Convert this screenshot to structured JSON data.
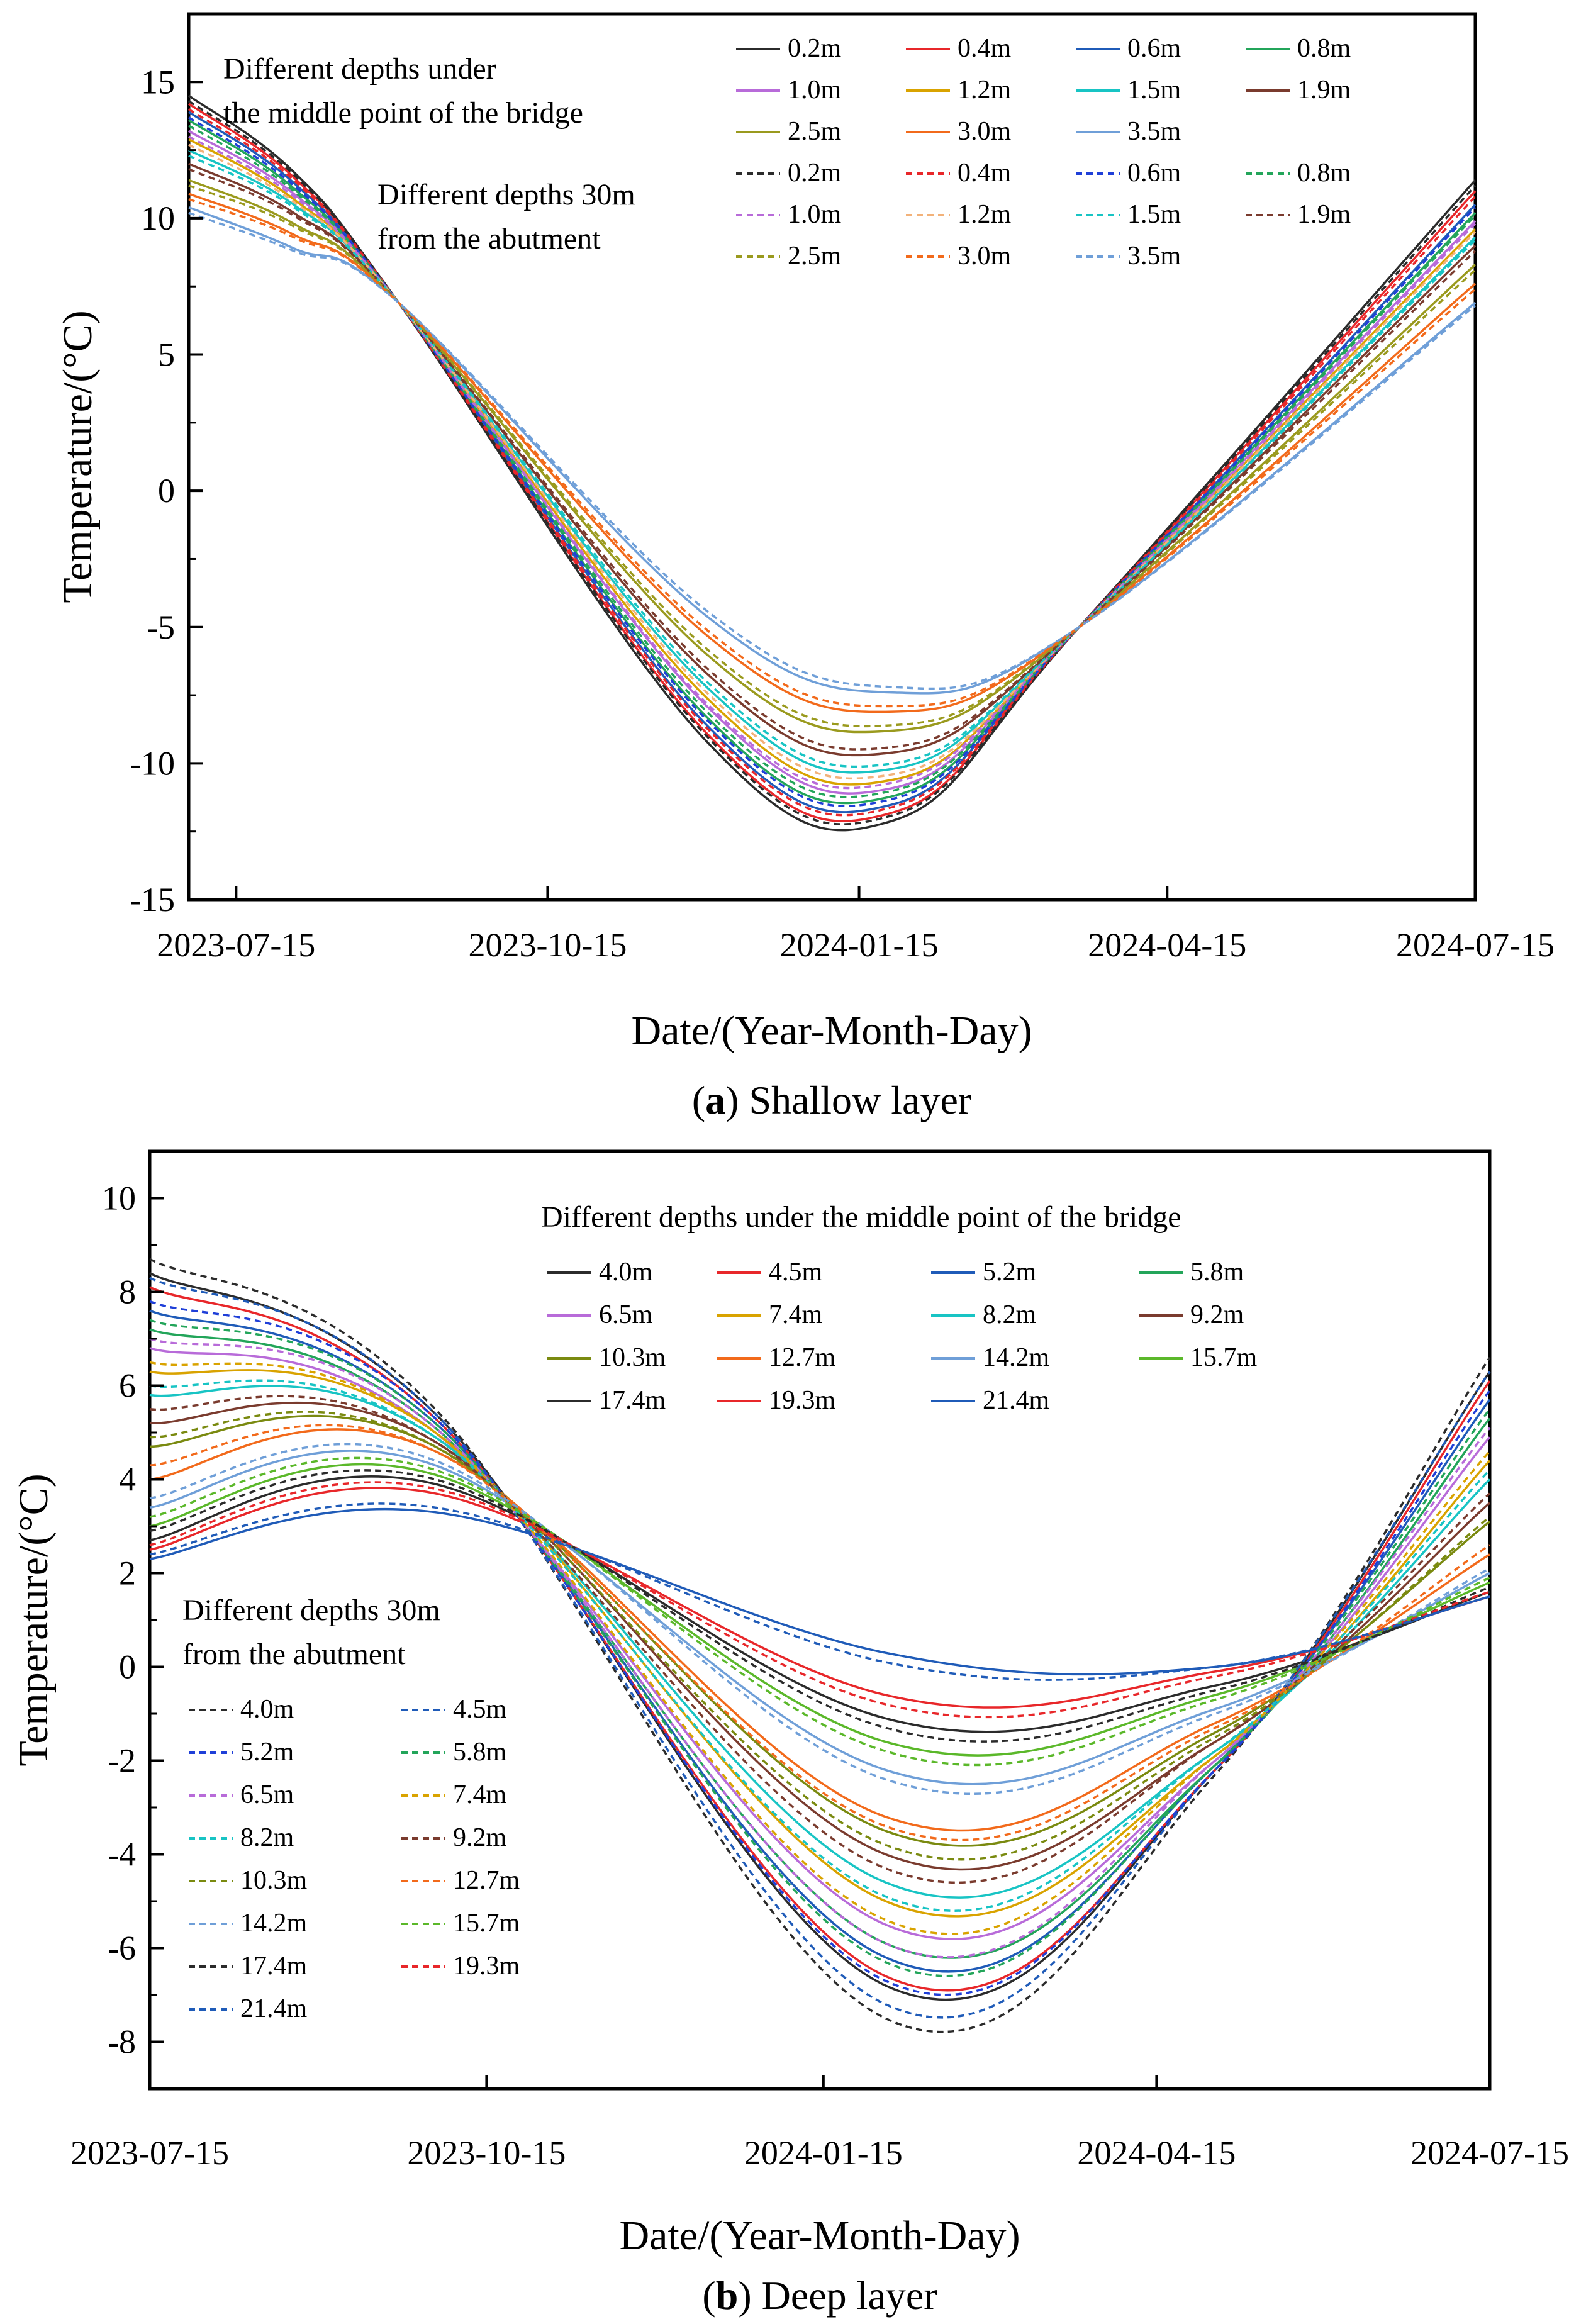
{
  "chart_data": [
    {
      "panel": "a",
      "type": "line",
      "caption_letter": "a",
      "caption_text": "Shallow layer",
      "xlabel": "Date/(Year-Month-Day)",
      "ylabel": "Temperature/(°C)",
      "xlim": [
        "2023-07-01",
        "2024-07-15"
      ],
      "ylim": [
        -15,
        17.5
      ],
      "x_ticks": [
        "2023-07-15",
        "2023-10-15",
        "2024-01-15",
        "2024-04-15",
        "2024-07-15"
      ],
      "y_ticks": [
        -15,
        -10,
        -5,
        0,
        5,
        10,
        15
      ],
      "annotations": [
        {
          "text": "Different depths under",
          "line": 1,
          "group": "solid"
        },
        {
          "text": "the middle point of  the bridge",
          "line": 2,
          "group": "solid"
        },
        {
          "text": "Different depths  30m",
          "line": 1,
          "group": "dashed"
        },
        {
          "text": "from the  abutment",
          "line": 2,
          "group": "dashed"
        }
      ],
      "legend_placement": "top-right",
      "legend_columns": 4,
      "series": [
        {
          "name": "0.2m",
          "group": "middle",
          "style": "solid",
          "color": "#2b2b2b",
          "y": [
            14.5,
            11.7,
            6.9,
            -9.2,
            -12.1,
            -5.0,
            11.4
          ]
        },
        {
          "name": "0.4m",
          "group": "middle",
          "style": "solid",
          "color": "#e8272a",
          "y": [
            14.2,
            11.5,
            6.9,
            -8.9,
            -11.8,
            -5.0,
            11.0
          ]
        },
        {
          "name": "0.6m",
          "group": "middle",
          "style": "solid",
          "color": "#1f5bb8",
          "y": [
            13.9,
            11.3,
            6.9,
            -8.6,
            -11.5,
            -5.0,
            10.5
          ]
        },
        {
          "name": "0.8m",
          "group": "middle",
          "style": "solid",
          "color": "#23a55a",
          "y": [
            13.6,
            11.1,
            6.9,
            -8.3,
            -11.2,
            -5.0,
            10.2
          ]
        },
        {
          "name": "1.0m",
          "group": "middle",
          "style": "solid",
          "color": "#b86bd9",
          "y": [
            13.2,
            10.9,
            6.9,
            -7.9,
            -10.9,
            -5.0,
            9.9
          ]
        },
        {
          "name": "1.2m",
          "group": "middle",
          "style": "solid",
          "color": "#d9a300",
          "y": [
            12.9,
            10.7,
            6.9,
            -7.6,
            -10.6,
            -5.0,
            9.6
          ]
        },
        {
          "name": "1.5m",
          "group": "middle",
          "style": "solid",
          "color": "#18c4c4",
          "y": [
            12.5,
            10.5,
            6.9,
            -7.2,
            -10.2,
            -5.0,
            9.3
          ]
        },
        {
          "name": "1.9m",
          "group": "middle",
          "style": "solid",
          "color": "#7a3b2e",
          "y": [
            12.0,
            10.2,
            6.9,
            -6.7,
            -9.6,
            -5.0,
            9.0
          ]
        },
        {
          "name": "2.5m",
          "group": "middle",
          "style": "solid",
          "color": "#9a9a1e",
          "y": [
            11.4,
            9.8,
            6.9,
            -6.0,
            -8.8,
            -5.0,
            8.3
          ]
        },
        {
          "name": "3.0m",
          "group": "middle",
          "style": "solid",
          "color": "#f26a1b",
          "y": [
            10.9,
            9.4,
            6.9,
            -5.3,
            -8.1,
            -5.0,
            7.6
          ]
        },
        {
          "name": "3.5m",
          "group": "middle",
          "style": "solid",
          "color": "#6f9fd8",
          "y": [
            10.4,
            8.9,
            6.9,
            -4.6,
            -7.4,
            -5.0,
            6.9
          ]
        },
        {
          "name": "0.2m",
          "group": "abutment",
          "style": "dashed",
          "color": "#2b2b2b",
          "y": [
            14.3,
            11.6,
            6.9,
            -9.0,
            -11.9,
            -5.0,
            11.2
          ]
        },
        {
          "name": "0.4m",
          "group": "abutment",
          "style": "dashed",
          "color": "#e8272a",
          "y": [
            14.0,
            11.4,
            6.9,
            -8.7,
            -11.6,
            -5.0,
            10.8
          ]
        },
        {
          "name": "0.6m",
          "group": "abutment",
          "style": "dashed",
          "color": "#1f3fd8",
          "y": [
            13.7,
            11.2,
            6.9,
            -8.4,
            -11.3,
            -5.0,
            10.4
          ]
        },
        {
          "name": "0.8m",
          "group": "abutment",
          "style": "dashed",
          "color": "#23a55a",
          "y": [
            13.4,
            11.0,
            6.9,
            -8.1,
            -11.0,
            -5.0,
            10.1
          ]
        },
        {
          "name": "1.0m",
          "group": "abutment",
          "style": "dashed",
          "color": "#b86bd9",
          "y": [
            13.0,
            10.8,
            6.9,
            -7.8,
            -10.7,
            -5.0,
            9.8
          ]
        },
        {
          "name": "1.2m",
          "group": "abutment",
          "style": "dashed",
          "color": "#f2b27a",
          "y": [
            12.7,
            10.6,
            6.9,
            -7.4,
            -10.4,
            -5.0,
            9.5
          ]
        },
        {
          "name": "1.5m",
          "group": "abutment",
          "style": "dashed",
          "color": "#18c4c4",
          "y": [
            12.3,
            10.4,
            6.9,
            -7.0,
            -10.0,
            -5.0,
            9.2
          ]
        },
        {
          "name": "1.9m",
          "group": "abutment",
          "style": "dashed",
          "color": "#7a3b2e",
          "y": [
            11.8,
            10.1,
            6.9,
            -6.5,
            -9.4,
            -5.0,
            8.8
          ]
        },
        {
          "name": "2.5m",
          "group": "abutment",
          "style": "dashed",
          "color": "#9a9a1e",
          "y": [
            11.2,
            9.7,
            6.9,
            -5.8,
            -8.6,
            -5.0,
            8.1
          ]
        },
        {
          "name": "3.0m",
          "group": "abutment",
          "style": "dashed",
          "color": "#f26a1b",
          "y": [
            10.7,
            9.3,
            6.9,
            -5.1,
            -7.9,
            -5.0,
            7.4
          ]
        },
        {
          "name": "3.5m",
          "group": "abutment",
          "style": "dashed",
          "color": "#6f9fd8",
          "y": [
            10.2,
            8.8,
            6.9,
            -4.4,
            -7.2,
            -5.0,
            6.8
          ]
        }
      ],
      "x": [
        "2023-07-01",
        "2023-08-01",
        "2023-09-01",
        "2023-12-01",
        "2024-01-25",
        "2024-03-20",
        "2024-07-15"
      ]
    },
    {
      "panel": "b",
      "type": "line",
      "caption_letter": "b",
      "caption_text": "Deep layer",
      "xlabel": "Date/(Year-Month-Day)",
      "ylabel": "Temperature/(°C)",
      "xlim": [
        "2023-07-15",
        "2024-07-15"
      ],
      "ylim": [
        -9,
        11
      ],
      "x_ticks": [
        "2023-07-15",
        "2023-10-15",
        "2024-01-15",
        "2024-04-15",
        "2024-07-15"
      ],
      "y_ticks": [
        -8,
        -6,
        -4,
        -2,
        0,
        2,
        4,
        6,
        8,
        10
      ],
      "annotations": [
        {
          "text": "Different depths under  the middle point of  the bridge",
          "line": 1,
          "group": "solid"
        },
        {
          "text": "Different depths  30m",
          "line": 1,
          "group": "dashed"
        },
        {
          "text": "from the  abutment",
          "line": 2,
          "group": "dashed"
        }
      ],
      "legend_placement": "top-right and lower-left",
      "series": [
        {
          "name": "4.0m",
          "group": "middle",
          "style": "solid",
          "color": "#2b2b2b",
          "y": [
            8.4,
            5.4,
            -6.8,
            -2.2,
            6.3
          ]
        },
        {
          "name": "4.5m",
          "group": "middle",
          "style": "solid",
          "color": "#e8272a",
          "y": [
            8.1,
            5.3,
            -6.6,
            -2.2,
            6.1
          ]
        },
        {
          "name": "5.2m",
          "group": "middle",
          "style": "solid",
          "color": "#1f5bb8",
          "y": [
            7.6,
            5.2,
            -6.2,
            -2.1,
            5.7
          ]
        },
        {
          "name": "5.8m",
          "group": "middle",
          "style": "solid",
          "color": "#23a55a",
          "y": [
            7.2,
            5.1,
            -5.9,
            -2.1,
            5.3
          ]
        },
        {
          "name": "6.5m",
          "group": "middle",
          "style": "solid",
          "color": "#b86bd9",
          "y": [
            6.8,
            5.0,
            -5.5,
            -2.0,
            4.9
          ]
        },
        {
          "name": "7.4m",
          "group": "middle",
          "style": "solid",
          "color": "#d9a300",
          "y": [
            6.3,
            5.0,
            -5.0,
            -1.9,
            4.4
          ]
        },
        {
          "name": "8.2m",
          "group": "middle",
          "style": "solid",
          "color": "#18c4c4",
          "y": [
            5.8,
            4.9,
            -4.6,
            -1.8,
            4.0
          ]
        },
        {
          "name": "9.2m",
          "group": "middle",
          "style": "solid",
          "color": "#7a3b2e",
          "y": [
            5.2,
            4.8,
            -4.0,
            -1.6,
            3.5
          ]
        },
        {
          "name": "10.3m",
          "group": "middle",
          "style": "solid",
          "color": "#7a8a10",
          "y": [
            4.7,
            4.7,
            -3.5,
            -1.4,
            3.1
          ]
        },
        {
          "name": "12.7m",
          "group": "middle",
          "style": "solid",
          "color": "#f26a1b",
          "y": [
            4.0,
            4.6,
            -3.2,
            -1.2,
            2.4
          ]
        },
        {
          "name": "14.2m",
          "group": "middle",
          "style": "solid",
          "color": "#6f9fd8",
          "y": [
            3.4,
            4.3,
            -2.2,
            -0.9,
            2.0
          ]
        },
        {
          "name": "15.7m",
          "group": "middle",
          "style": "solid",
          "color": "#5bb82a",
          "y": [
            3.0,
            4.1,
            -1.6,
            -0.6,
            1.8
          ]
        },
        {
          "name": "17.4m",
          "group": "middle",
          "style": "solid",
          "color": "#2b2b2b",
          "y": [
            2.7,
            3.9,
            -1.1,
            -0.4,
            1.6
          ]
        },
        {
          "name": "19.3m",
          "group": "middle",
          "style": "solid",
          "color": "#e8272a",
          "y": [
            2.5,
            3.7,
            -0.6,
            -0.1,
            1.5
          ]
        },
        {
          "name": "21.4m",
          "group": "middle",
          "style": "solid",
          "color": "#1f5bb8",
          "y": [
            2.3,
            3.3,
            0.3,
            0.0,
            1.5
          ]
        },
        {
          "name": "4.0m",
          "group": "abutment",
          "style": "dashed",
          "color": "#2b2b2b",
          "y": [
            8.7,
            5.5,
            -7.5,
            -2.3,
            6.6
          ]
        },
        {
          "name": "4.5m",
          "group": "abutment",
          "style": "dashed",
          "color": "#1f5bb8",
          "y": [
            8.3,
            5.4,
            -7.2,
            -2.2,
            6.3
          ]
        },
        {
          "name": "5.2m",
          "group": "abutment",
          "style": "dashed",
          "color": "#1f3fd8",
          "y": [
            7.8,
            5.3,
            -6.7,
            -2.2,
            5.9
          ]
        },
        {
          "name": "5.8m",
          "group": "abutment",
          "style": "dashed",
          "color": "#23a55a",
          "y": [
            7.4,
            5.2,
            -6.3,
            -2.1,
            5.5
          ]
        },
        {
          "name": "6.5m",
          "group": "abutment",
          "style": "dashed",
          "color": "#b86bd9",
          "y": [
            7.0,
            5.1,
            -5.9,
            -2.0,
            5.1
          ]
        },
        {
          "name": "7.4m",
          "group": "abutment",
          "style": "dashed",
          "color": "#d9a300",
          "y": [
            6.5,
            5.0,
            -5.4,
            -1.9,
            4.6
          ]
        },
        {
          "name": "8.2m",
          "group": "abutment",
          "style": "dashed",
          "color": "#18c4c4",
          "y": [
            6.0,
            4.9,
            -4.9,
            -1.8,
            4.2
          ]
        },
        {
          "name": "9.2m",
          "group": "abutment",
          "style": "dashed",
          "color": "#7a3b2e",
          "y": [
            5.5,
            4.8,
            -4.3,
            -1.6,
            3.7
          ]
        },
        {
          "name": "10.3m",
          "group": "abutment",
          "style": "dashed",
          "color": "#7a8a10",
          "y": [
            4.9,
            4.7,
            -3.8,
            -1.5,
            3.2
          ]
        },
        {
          "name": "12.7m",
          "group": "abutment",
          "style": "dashed",
          "color": "#f26a1b",
          "y": [
            4.3,
            4.6,
            -3.4,
            -1.3,
            2.6
          ]
        },
        {
          "name": "14.2m",
          "group": "abutment",
          "style": "dashed",
          "color": "#6f9fd8",
          "y": [
            3.6,
            4.4,
            -2.4,
            -1.0,
            2.1
          ]
        },
        {
          "name": "15.7m",
          "group": "abutment",
          "style": "dashed",
          "color": "#5bb82a",
          "y": [
            3.2,
            4.2,
            -1.8,
            -0.7,
            1.9
          ]
        },
        {
          "name": "17.4m",
          "group": "abutment",
          "style": "dashed",
          "color": "#2b2b2b",
          "y": [
            2.9,
            4.0,
            -1.3,
            -0.5,
            1.7
          ]
        },
        {
          "name": "19.3m",
          "group": "abutment",
          "style": "dashed",
          "color": "#e8272a",
          "y": [
            2.6,
            3.8,
            -0.8,
            -0.2,
            1.6
          ]
        },
        {
          "name": "21.4m",
          "group": "abutment",
          "style": "dashed",
          "color": "#1f5bb8",
          "y": [
            2.4,
            3.4,
            0.1,
            0.0,
            1.5
          ]
        }
      ],
      "x": [
        "2023-07-15",
        "2023-10-01",
        "2024-02-01",
        "2024-05-01",
        "2024-07-15"
      ]
    }
  ]
}
